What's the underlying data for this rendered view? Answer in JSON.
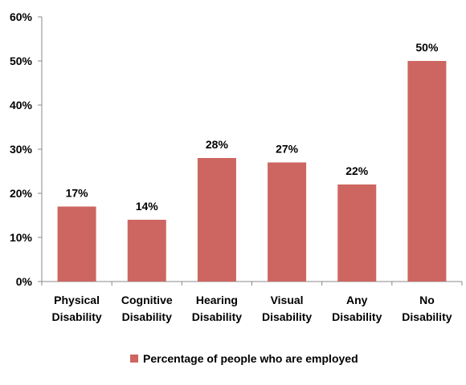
{
  "chart_data": {
    "type": "bar",
    "categories": [
      [
        "Physical",
        "Disability"
      ],
      [
        "Cognitive",
        "Disability"
      ],
      [
        "Hearing",
        "Disability"
      ],
      [
        "Visual",
        "Disability"
      ],
      [
        "Any",
        "Disability"
      ],
      [
        "No",
        "Disability"
      ]
    ],
    "series": [
      {
        "name": "Percentage of people who are employed",
        "values": [
          17,
          14,
          28,
          27,
          22,
          50
        ],
        "data_labels": [
          "17%",
          "14%",
          "28%",
          "27%",
          "22%",
          "50%"
        ]
      }
    ],
    "ylim": [
      0,
      60
    ],
    "yticks": [
      0,
      10,
      20,
      30,
      40,
      50,
      60
    ],
    "ytick_labels": [
      "0%",
      "10%",
      "20%",
      "30%",
      "40%",
      "50%",
      "60%"
    ],
    "grid": false,
    "legend_position": "bottom",
    "bar_color": "#cd6661",
    "axis_color": "#888888"
  }
}
